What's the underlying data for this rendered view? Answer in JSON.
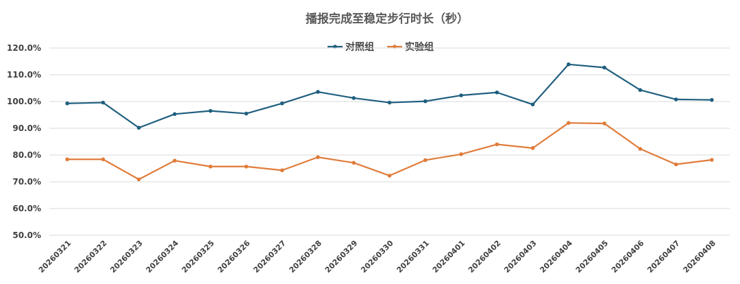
{
  "chart_data": {
    "type": "line",
    "title": "播报完成至稳定步行时长（秒）",
    "xlabel": "",
    "ylabel": "",
    "ylim": [
      50,
      120
    ],
    "yticks": [
      "120.0%",
      "110.0%",
      "100.0%",
      "90.0%",
      "80.0%",
      "70.0%",
      "60.0%",
      "50.0%"
    ],
    "ytick_values": [
      120,
      110,
      100,
      90,
      80,
      70,
      60,
      50
    ],
    "grid": true,
    "legend_position": "top-center",
    "categories": [
      "20260321",
      "20260322",
      "20260323",
      "20260324",
      "20260325",
      "20260326",
      "20260327",
      "20260328",
      "20260329",
      "20260330",
      "20260331",
      "20260401",
      "20260402",
      "20260403",
      "20260404",
      "20260405",
      "20260406",
      "20260407",
      "20260408"
    ],
    "series": [
      {
        "name": "对照组",
        "color": "#1f5f7f",
        "values": [
          99.3,
          99.6,
          90.2,
          95.3,
          96.5,
          95.5,
          99.3,
          103.6,
          101.3,
          99.6,
          100.1,
          102.3,
          103.4,
          98.9,
          113.9,
          112.7,
          104.3,
          100.8,
          100.6
        ]
      },
      {
        "name": "实验组",
        "color": "#e07b39",
        "values": [
          78.4,
          78.4,
          70.9,
          77.9,
          75.7,
          75.7,
          74.3,
          79.2,
          77.1,
          72.3,
          78.1,
          80.3,
          84.0,
          82.6,
          92.0,
          91.8,
          82.3,
          76.5,
          78.2
        ]
      }
    ]
  }
}
